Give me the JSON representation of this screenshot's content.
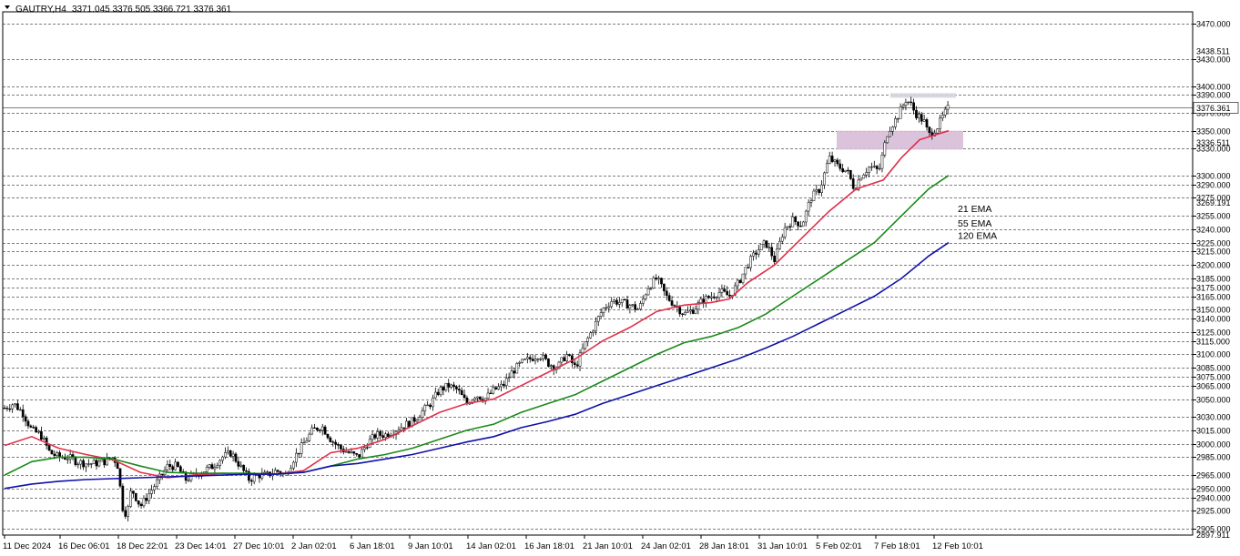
{
  "header": {
    "symbol_label": "GAUTRY,H4",
    "ohlc_label": "3371.045 3376.505 3366.721 3376.361"
  },
  "chart_data": {
    "type": "candlestick",
    "symbol": "GAUTRY",
    "timeframe": "H4",
    "ohlc": {
      "open": 3371.045,
      "high": 3376.505,
      "low": 3366.721,
      "close": 3376.361
    },
    "y_range": [
      2897.911,
      3483.0
    ],
    "price_levels": [
      3470,
      3430,
      3400,
      3390,
      3370,
      3350,
      3330,
      3300,
      3290,
      3275,
      3255,
      3240,
      3225,
      3215,
      3200,
      3185,
      3175,
      3165,
      3150,
      3140,
      3125,
      3115,
      3100,
      3085,
      3075,
      3065,
      3050,
      3030,
      3015,
      3000,
      2985,
      2965,
      2950,
      2940,
      2925,
      2905
    ],
    "level_labels": [
      "3470.000",
      "3430.000",
      "3400.000",
      "3390.000",
      "3370.000",
      "3350.000",
      "3330.000",
      "3300.000",
      "3290.000",
      "3275.000",
      "3255.000",
      "3240.000",
      "3225.000",
      "3215.000",
      "3200.000",
      "3185.000",
      "3175.000",
      "3165.000",
      "3150.000",
      "3140.000",
      "3125.000",
      "3115.000",
      "3100.000",
      "3085.000",
      "3075.000",
      "3065.000",
      "3050.000",
      "3030.000",
      "3015.000",
      "3000.000",
      "2985.000",
      "2965.000",
      "2950.000",
      "2940.000",
      "2925.000",
      "2905.000"
    ],
    "extra_price_labels": [
      {
        "price": 3438.511,
        "label": "3438.511"
      },
      {
        "price": 3336.511,
        "label": "3336.511"
      },
      {
        "price": 3269.191,
        "label": "3269.191"
      },
      {
        "price": 2897.911,
        "label": "2897.911"
      }
    ],
    "current_price": {
      "price": 3376.361,
      "label": "3376.361"
    },
    "zones": [
      {
        "from_date": "7 Feb 18:01",
        "price_low": 3387,
        "price_high": 3392,
        "color": "#d8d0e0"
      },
      {
        "from_date": "5 Feb 02:01",
        "price_low": 3329,
        "price_high": 3350,
        "color": "#d8bcd8"
      }
    ],
    "x_labels": [
      "11 Dec 2024",
      "16 Dec 06:01",
      "18 Dec 22:01",
      "23 Dec 14:01",
      "27 Dec 10:01",
      "2 Jan 02:01",
      "6 Jan 18:01",
      "9 Jan 10:01",
      "14 Jan 02:01",
      "16 Jan 18:01",
      "21 Jan 10:01",
      "24 Jan 02:01",
      "28 Jan 18:01",
      "31 Jan 10:01",
      "5 Feb 02:01",
      "7 Feb 18:01",
      "12 Feb 10:01"
    ],
    "price_path": [
      [
        0,
        3040
      ],
      [
        10,
        3045
      ],
      [
        20,
        3035
      ],
      [
        30,
        3015
      ],
      [
        40,
        3010
      ],
      [
        50,
        2990
      ],
      [
        60,
        2985
      ],
      [
        70,
        2985
      ],
      [
        80,
        2980
      ],
      [
        90,
        2978
      ],
      [
        100,
        2978
      ],
      [
        110,
        2980
      ],
      [
        120,
        2985
      ],
      [
        125,
        2975
      ],
      [
        130,
        2930
      ],
      [
        135,
        2920
      ],
      [
        140,
        2950
      ],
      [
        150,
        2930
      ],
      [
        160,
        2945
      ],
      [
        170,
        2960
      ],
      [
        180,
        2975
      ],
      [
        190,
        2975
      ],
      [
        200,
        2960
      ],
      [
        210,
        2965
      ],
      [
        220,
        2970
      ],
      [
        230,
        2975
      ],
      [
        240,
        2985
      ],
      [
        250,
        2990
      ],
      [
        260,
        2975
      ],
      [
        270,
        2960
      ],
      [
        280,
        2965
      ],
      [
        290,
        2965
      ],
      [
        300,
        2970
      ],
      [
        310,
        2965
      ],
      [
        320,
        2985
      ],
      [
        330,
        3000
      ],
      [
        340,
        3015
      ],
      [
        350,
        3020
      ],
      [
        360,
        3005
      ],
      [
        370,
        2995
      ],
      [
        380,
        2990
      ],
      [
        390,
        2985
      ],
      [
        400,
        3000
      ],
      [
        410,
        3010
      ],
      [
        420,
        3010
      ],
      [
        430,
        3015
      ],
      [
        440,
        3020
      ],
      [
        450,
        3025
      ],
      [
        460,
        3035
      ],
      [
        470,
        3045
      ],
      [
        480,
        3060
      ],
      [
        490,
        3065
      ],
      [
        500,
        3060
      ],
      [
        510,
        3045
      ],
      [
        520,
        3055
      ],
      [
        530,
        3050
      ],
      [
        540,
        3060
      ],
      [
        550,
        3065
      ],
      [
        560,
        3080
      ],
      [
        570,
        3090
      ],
      [
        580,
        3095
      ],
      [
        590,
        3100
      ],
      [
        600,
        3090
      ],
      [
        610,
        3085
      ],
      [
        620,
        3100
      ],
      [
        630,
        3085
      ],
      [
        640,
        3110
      ],
      [
        650,
        3130
      ],
      [
        660,
        3150
      ],
      [
        670,
        3160
      ],
      [
        680,
        3158
      ],
      [
        690,
        3155
      ],
      [
        700,
        3150
      ],
      [
        710,
        3175
      ],
      [
        720,
        3185
      ],
      [
        730,
        3165
      ],
      [
        740,
        3155
      ],
      [
        750,
        3145
      ],
      [
        760,
        3150
      ],
      [
        770,
        3160
      ],
      [
        780,
        3165
      ],
      [
        790,
        3170
      ],
      [
        800,
        3165
      ],
      [
        810,
        3180
      ],
      [
        820,
        3200
      ],
      [
        830,
        3215
      ],
      [
        840,
        3225
      ],
      [
        850,
        3205
      ],
      [
        860,
        3240
      ],
      [
        870,
        3250
      ],
      [
        880,
        3245
      ],
      [
        890,
        3275
      ],
      [
        900,
        3285
      ],
      [
        910,
        3320
      ],
      [
        920,
        3310
      ],
      [
        930,
        3305
      ],
      [
        938,
        3285
      ],
      [
        945,
        3300
      ],
      [
        955,
        3310
      ],
      [
        965,
        3305
      ],
      [
        975,
        3350
      ],
      [
        985,
        3365
      ],
      [
        995,
        3385
      ],
      [
        1000,
        3380
      ],
      [
        1005,
        3370
      ],
      [
        1010,
        3365
      ],
      [
        1015,
        3360
      ],
      [
        1020,
        3345
      ],
      [
        1025,
        3350
      ],
      [
        1030,
        3355
      ],
      [
        1035,
        3365
      ],
      [
        1042,
        3376.361
      ]
    ],
    "series": [
      {
        "name": "21 EMA",
        "color": "#e0304a",
        "label_price": 3262,
        "points": [
          [
            0,
            2998
          ],
          [
            30,
            3008
          ],
          [
            60,
            2995
          ],
          [
            90,
            2988
          ],
          [
            120,
            2982
          ],
          [
            150,
            2968
          ],
          [
            180,
            2962
          ],
          [
            210,
            2965
          ],
          [
            240,
            2967
          ],
          [
            270,
            2966
          ],
          [
            300,
            2966
          ],
          [
            330,
            2970
          ],
          [
            360,
            2990
          ],
          [
            390,
            2995
          ],
          [
            420,
            3005
          ],
          [
            450,
            3020
          ],
          [
            480,
            3035
          ],
          [
            510,
            3045
          ],
          [
            540,
            3050
          ],
          [
            570,
            3065
          ],
          [
            600,
            3080
          ],
          [
            630,
            3095
          ],
          [
            660,
            3115
          ],
          [
            690,
            3130
          ],
          [
            720,
            3148
          ],
          [
            750,
            3155
          ],
          [
            780,
            3158
          ],
          [
            800,
            3162
          ],
          [
            820,
            3180
          ],
          [
            850,
            3200
          ],
          [
            880,
            3230
          ],
          [
            910,
            3260
          ],
          [
            940,
            3285
          ],
          [
            970,
            3295
          ],
          [
            990,
            3320
          ],
          [
            1010,
            3340
          ],
          [
            1042,
            3350
          ]
        ]
      },
      {
        "name": "55 EMA",
        "color": "#1a8a1a",
        "label_price": 3246,
        "points": [
          [
            0,
            2965
          ],
          [
            30,
            2980
          ],
          [
            60,
            2985
          ],
          [
            90,
            2985
          ],
          [
            120,
            2983
          ],
          [
            150,
            2975
          ],
          [
            180,
            2968
          ],
          [
            210,
            2967
          ],
          [
            240,
            2967
          ],
          [
            270,
            2967
          ],
          [
            300,
            2966
          ],
          [
            330,
            2968
          ],
          [
            360,
            2975
          ],
          [
            390,
            2983
          ],
          [
            420,
            2988
          ],
          [
            450,
            2995
          ],
          [
            480,
            3005
          ],
          [
            510,
            3015
          ],
          [
            540,
            3022
          ],
          [
            570,
            3035
          ],
          [
            600,
            3045
          ],
          [
            630,
            3055
          ],
          [
            660,
            3070
          ],
          [
            690,
            3085
          ],
          [
            720,
            3100
          ],
          [
            750,
            3113
          ],
          [
            780,
            3120
          ],
          [
            810,
            3130
          ],
          [
            840,
            3145
          ],
          [
            870,
            3165
          ],
          [
            900,
            3185
          ],
          [
            930,
            3205
          ],
          [
            960,
            3225
          ],
          [
            990,
            3255
          ],
          [
            1020,
            3285
          ],
          [
            1042,
            3300
          ]
        ]
      },
      {
        "name": "120 EMA",
        "color": "#1010aa",
        "label_price": 3232,
        "points": [
          [
            0,
            2950
          ],
          [
            30,
            2955
          ],
          [
            60,
            2958
          ],
          [
            90,
            2960
          ],
          [
            120,
            2961
          ],
          [
            150,
            2962
          ],
          [
            180,
            2963
          ],
          [
            210,
            2964
          ],
          [
            240,
            2965
          ],
          [
            270,
            2966
          ],
          [
            300,
            2966
          ],
          [
            330,
            2968
          ],
          [
            360,
            2975
          ],
          [
            390,
            2978
          ],
          [
            420,
            2983
          ],
          [
            450,
            2988
          ],
          [
            480,
            2995
          ],
          [
            510,
            3002
          ],
          [
            540,
            3008
          ],
          [
            570,
            3018
          ],
          [
            600,
            3025
          ],
          [
            630,
            3033
          ],
          [
            660,
            3045
          ],
          [
            690,
            3055
          ],
          [
            720,
            3065
          ],
          [
            750,
            3075
          ],
          [
            780,
            3085
          ],
          [
            810,
            3095
          ],
          [
            840,
            3107
          ],
          [
            870,
            3120
          ],
          [
            900,
            3135
          ],
          [
            930,
            3150
          ],
          [
            960,
            3165
          ],
          [
            990,
            3185
          ],
          [
            1020,
            3210
          ],
          [
            1042,
            3225
          ]
        ]
      }
    ]
  }
}
